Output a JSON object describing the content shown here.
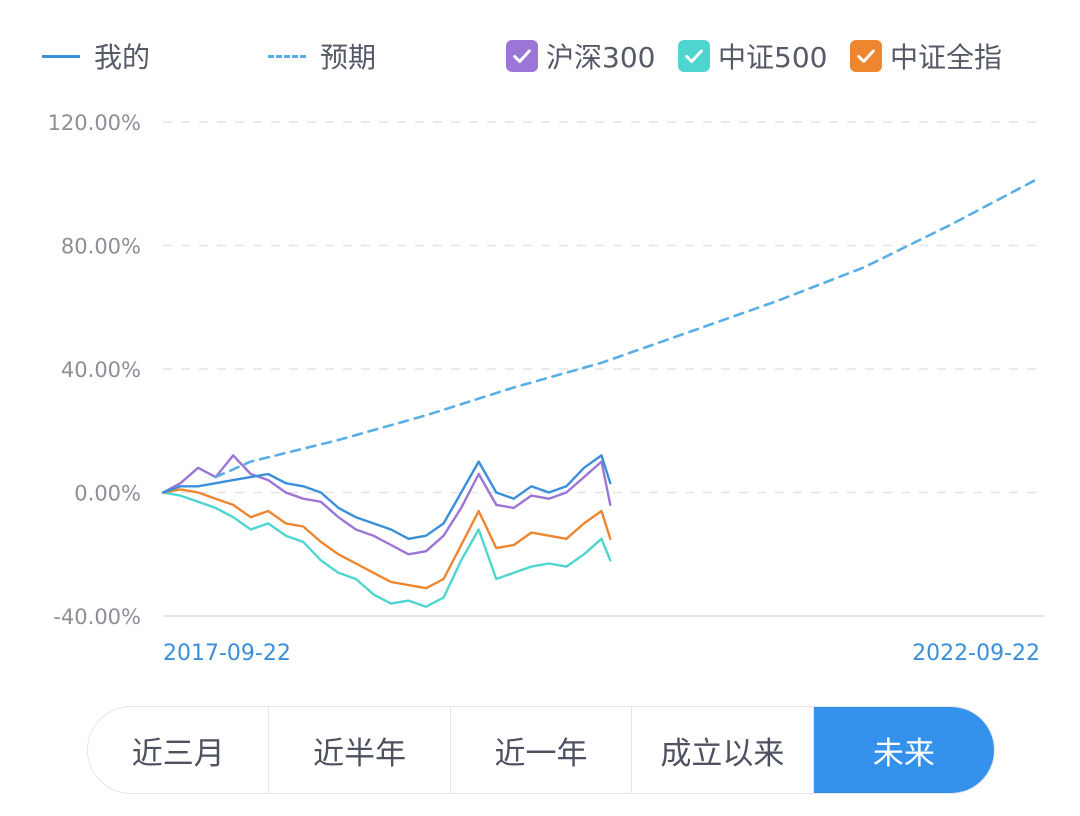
{
  "legend": {
    "mine": "我的",
    "expected": "预期",
    "hs300": "沪深300",
    "zz500": "中证500",
    "zzall": "中证全指"
  },
  "colors": {
    "mine": "#3a8fd9",
    "expected": "#5aaee6",
    "hs300": "#9b76d6",
    "zz500": "#4fd5cf",
    "zzall": "#ee8630",
    "grid": "#e2e4e8",
    "active": "#3491ec"
  },
  "range_tabs": [
    {
      "label": "近三月",
      "active": false
    },
    {
      "label": "近半年",
      "active": false
    },
    {
      "label": "近一年",
      "active": false
    },
    {
      "label": "成立以来",
      "active": false
    },
    {
      "label": "未来",
      "active": true
    }
  ],
  "chart_data": {
    "type": "line",
    "x_start_label": "2017-09-22",
    "x_end_label": "2022-09-22",
    "xlim": [
      0,
      100
    ],
    "ylim": [
      -40,
      120
    ],
    "yticks": [
      120,
      80,
      40,
      0,
      -40
    ],
    "ytick_labels": [
      "120.00%",
      "80.00%",
      "40.00%",
      "0.00%",
      "-40.00%"
    ],
    "grid": true,
    "series": [
      {
        "name": "我的",
        "key": "mine",
        "style": "solid",
        "x": [
          0,
          2,
          4,
          6,
          8,
          10,
          12,
          14,
          16,
          18,
          20,
          22,
          24,
          26,
          28,
          30,
          32,
          34,
          36,
          38,
          40,
          42,
          44,
          46,
          48,
          50,
          51
        ],
        "values": [
          0,
          2,
          2,
          3,
          4,
          5,
          6,
          3,
          2,
          0,
          -5,
          -8,
          -10,
          -12,
          -15,
          -14,
          -10,
          0,
          10,
          0,
          -2,
          2,
          0,
          2,
          8,
          12,
          3
        ]
      },
      {
        "name": "预期",
        "key": "expected",
        "style": "dashed",
        "x": [
          6,
          10,
          20,
          30,
          40,
          50,
          60,
          70,
          80,
          90,
          100
        ],
        "values": [
          5,
          10,
          17,
          25,
          34,
          42,
          52,
          62,
          73,
          87,
          102
        ]
      },
      {
        "name": "沪深300",
        "key": "hs300",
        "style": "solid",
        "x": [
          0,
          2,
          4,
          6,
          8,
          10,
          12,
          14,
          16,
          18,
          20,
          22,
          24,
          26,
          28,
          30,
          32,
          34,
          36,
          38,
          40,
          42,
          44,
          46,
          48,
          50,
          51
        ],
        "values": [
          0,
          3,
          8,
          5,
          12,
          6,
          4,
          0,
          -2,
          -3,
          -8,
          -12,
          -14,
          -17,
          -20,
          -19,
          -14,
          -5,
          6,
          -4,
          -5,
          -1,
          -2,
          0,
          5,
          10,
          -4
        ]
      },
      {
        "name": "中证500",
        "key": "zz500",
        "style": "solid",
        "x": [
          0,
          2,
          4,
          6,
          8,
          10,
          12,
          14,
          16,
          18,
          20,
          22,
          24,
          26,
          28,
          30,
          32,
          34,
          36,
          38,
          40,
          42,
          44,
          46,
          48,
          50,
          51
        ],
        "values": [
          0,
          -1,
          -3,
          -5,
          -8,
          -12,
          -10,
          -14,
          -16,
          -22,
          -26,
          -28,
          -33,
          -36,
          -35,
          -37,
          -34,
          -22,
          -12,
          -28,
          -26,
          -24,
          -23,
          -24,
          -20,
          -15,
          -22
        ]
      },
      {
        "name": "中证全指",
        "key": "zzall",
        "style": "solid",
        "x": [
          0,
          2,
          4,
          6,
          8,
          10,
          12,
          14,
          16,
          18,
          20,
          22,
          24,
          26,
          28,
          30,
          32,
          34,
          36,
          38,
          40,
          42,
          44,
          46,
          48,
          50,
          51
        ],
        "values": [
          0,
          1,
          0,
          -2,
          -4,
          -8,
          -6,
          -10,
          -11,
          -16,
          -20,
          -23,
          -26,
          -29,
          -30,
          -31,
          -28,
          -17,
          -6,
          -18,
          -17,
          -13,
          -14,
          -15,
          -10,
          -6,
          -15
        ]
      }
    ]
  }
}
